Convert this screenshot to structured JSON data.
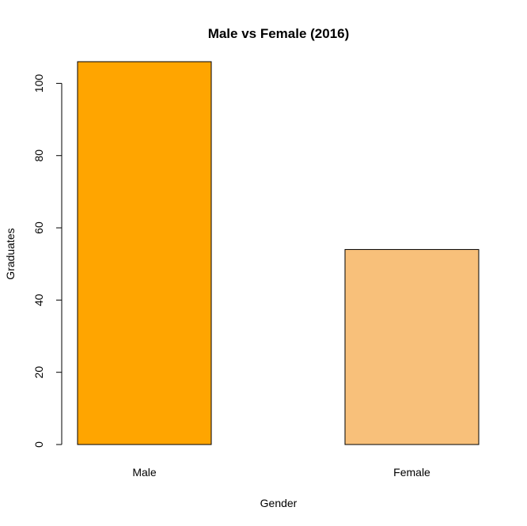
{
  "chart_data": {
    "type": "bar",
    "title": "Male vs Female (2016)",
    "xlabel": "Gender",
    "ylabel": "Graduates",
    "categories": [
      "Male",
      "Female"
    ],
    "values": [
      106,
      54
    ],
    "colors": [
      "#FFA500",
      "#F8C07A"
    ],
    "ylim": [
      0,
      106
    ],
    "yticks": [
      0,
      20,
      40,
      60,
      80,
      100
    ],
    "ytick_labels": [
      "0",
      "20",
      "40",
      "60",
      "80",
      "100"
    ],
    "grid": false,
    "legend": "none"
  }
}
